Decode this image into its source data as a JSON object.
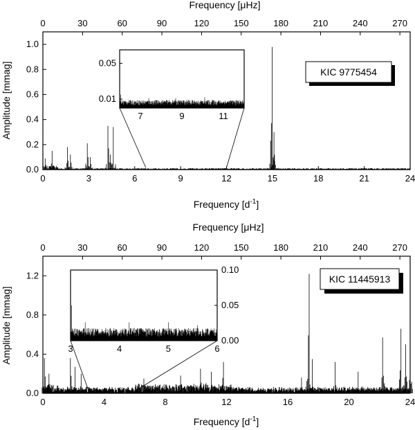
{
  "chart_data": [
    {
      "type": "line",
      "star_label": "KIC 9775454",
      "xlabel": "Frequency [d",
      "xlabel_sup": "-1",
      "xlabel_close": "]",
      "top_xlabel": "Frequency [μHz]",
      "ylabel": "Amplitude [mmag]",
      "xlim": [
        0,
        24
      ],
      "ylim": [
        0,
        1.1
      ],
      "xticks": [
        "0",
        "3",
        "6",
        "9",
        "12",
        "15",
        "18",
        "21",
        "24"
      ],
      "yticks": [
        "0.0",
        "0.2",
        "0.4",
        "0.6",
        "0.8",
        "1.0"
      ],
      "top_xticks": [
        "0",
        "30",
        "60",
        "90",
        "120",
        "150",
        "180",
        "210",
        "240",
        "270"
      ],
      "peaks": [
        {
          "x": 0.15,
          "y": 0.09
        },
        {
          "x": 0.6,
          "y": 0.15
        },
        {
          "x": 1.6,
          "y": 0.18
        },
        {
          "x": 1.8,
          "y": 0.12
        },
        {
          "x": 2.9,
          "y": 0.21
        },
        {
          "x": 3.1,
          "y": 0.1
        },
        {
          "x": 4.25,
          "y": 0.35
        },
        {
          "x": 4.4,
          "y": 0.12
        },
        {
          "x": 4.6,
          "y": 0.34
        },
        {
          "x": 14.98,
          "y": 0.98
        },
        {
          "x": 15.1,
          "y": 0.3
        }
      ],
      "inset": {
        "xlim": [
          6,
          12
        ],
        "ylim": [
          0,
          0.065
        ],
        "xticks": [
          "7",
          "9",
          "11"
        ],
        "yticks": [
          "0.01",
          "0.05"
        ],
        "noise_level": 0.006,
        "peaks": [
          {
            "x": 6.05,
            "y": 0.015
          },
          {
            "x": 7.4,
            "y": 0.011
          },
          {
            "x": 8.7,
            "y": 0.011
          },
          {
            "x": 10.1,
            "y": 0.012
          }
        ]
      }
    },
    {
      "type": "line",
      "star_label": "KIC 11445913",
      "xlabel": "Frequency [d",
      "xlabel_sup": "-1",
      "xlabel_close": "]",
      "top_xlabel": "Frequency [μHz]",
      "ylabel": "Amplitude [mmag]",
      "xlim": [
        0,
        24
      ],
      "ylim": [
        0,
        1.4
      ],
      "xticks": [
        "0",
        "4",
        "8",
        "12",
        "16",
        "20",
        "24"
      ],
      "yticks": [
        "0.0",
        "0.4",
        "0.8",
        "1.2"
      ],
      "top_xticks": [
        "0",
        "30",
        "60",
        "90",
        "120",
        "150",
        "180",
        "210",
        "240",
        "270"
      ],
      "peaks": [
        {
          "x": 0.1,
          "y": 0.36
        },
        {
          "x": 0.4,
          "y": 0.2
        },
        {
          "x": 1.8,
          "y": 0.36
        },
        {
          "x": 2.1,
          "y": 0.27
        },
        {
          "x": 2.5,
          "y": 0.2
        },
        {
          "x": 6.6,
          "y": 0.15
        },
        {
          "x": 9.0,
          "y": 0.18
        },
        {
          "x": 10.3,
          "y": 0.25
        },
        {
          "x": 11.0,
          "y": 0.22
        },
        {
          "x": 11.8,
          "y": 0.32
        },
        {
          "x": 16.9,
          "y": 0.16
        },
        {
          "x": 17.4,
          "y": 1.22
        },
        {
          "x": 17.6,
          "y": 0.35
        },
        {
          "x": 19.1,
          "y": 0.32
        },
        {
          "x": 20.6,
          "y": 0.22
        },
        {
          "x": 22.2,
          "y": 0.57
        },
        {
          "x": 23.4,
          "y": 0.66
        },
        {
          "x": 23.7,
          "y": 0.5
        },
        {
          "x": 24.0,
          "y": 0.58
        }
      ],
      "inset": {
        "xlim": [
          3,
          6
        ],
        "ylim": [
          0,
          0.1
        ],
        "xticks": [
          "3",
          "4",
          "5",
          "6"
        ],
        "yticks": [
          "0.00",
          "0.05",
          "0.10"
        ],
        "noise_level": 0.012,
        "peaks": [
          {
            "x": 3.02,
            "y": 0.05
          },
          {
            "x": 3.3,
            "y": 0.026
          },
          {
            "x": 4.2,
            "y": 0.026
          },
          {
            "x": 5.0,
            "y": 0.026
          },
          {
            "x": 5.6,
            "y": 0.022
          }
        ]
      }
    }
  ]
}
